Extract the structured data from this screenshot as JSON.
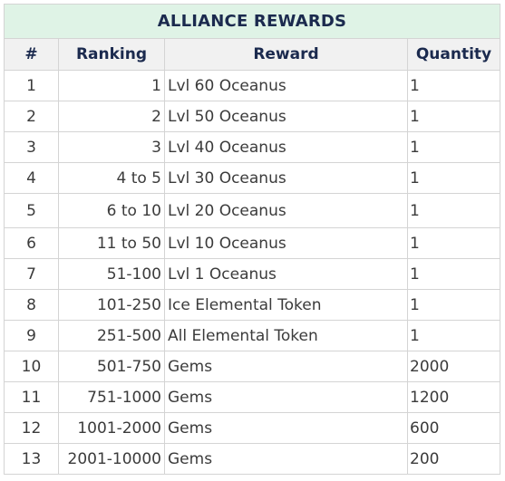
{
  "table": {
    "title": "ALLIANCE REWARDS",
    "headers": [
      "#",
      "Ranking",
      "Reward",
      "Quantity"
    ],
    "rows": [
      {
        "num": "1",
        "ranking": "1",
        "reward": "Lvl 60 Oceanus",
        "quantity": "1"
      },
      {
        "num": "2",
        "ranking": "2",
        "reward": "Lvl 50 Oceanus",
        "quantity": "1"
      },
      {
        "num": "3",
        "ranking": "3",
        "reward": "Lvl 40 Oceanus",
        "quantity": "1"
      },
      {
        "num": "4",
        "ranking": "4 to 5",
        "reward": "Lvl 30 Oceanus",
        "quantity": "1"
      },
      {
        "num": "5",
        "ranking": "6 to 10",
        "reward": "Lvl 20 Oceanus",
        "quantity": "1"
      },
      {
        "num": "6",
        "ranking": "11 to 50",
        "reward": "Lvl 10 Oceanus",
        "quantity": "1"
      },
      {
        "num": "7",
        "ranking": "51-100",
        "reward": "Lvl 1 Oceanus",
        "quantity": "1"
      },
      {
        "num": "8",
        "ranking": "101-250",
        "reward": "Ice Elemental Token",
        "quantity": "1"
      },
      {
        "num": "9",
        "ranking": "251-500",
        "reward": "All Elemental Token",
        "quantity": "1"
      },
      {
        "num": "10",
        "ranking": "501-750",
        "reward": "Gems",
        "quantity": "2000"
      },
      {
        "num": "11",
        "ranking": "751-1000",
        "reward": "Gems",
        "quantity": "1200"
      },
      {
        "num": "12",
        "ranking": "1001-2000",
        "reward": "Gems",
        "quantity": "600"
      },
      {
        "num": "13",
        "ranking": "2001-10000",
        "reward": "Gems",
        "quantity": "200"
      }
    ]
  },
  "colors": {
    "title_background": "#dff3e6",
    "header_background": "#f1f1f1",
    "heading_text": "#1b2a4e",
    "body_text": "#3b3b3b",
    "border": "#d4d4d4"
  }
}
